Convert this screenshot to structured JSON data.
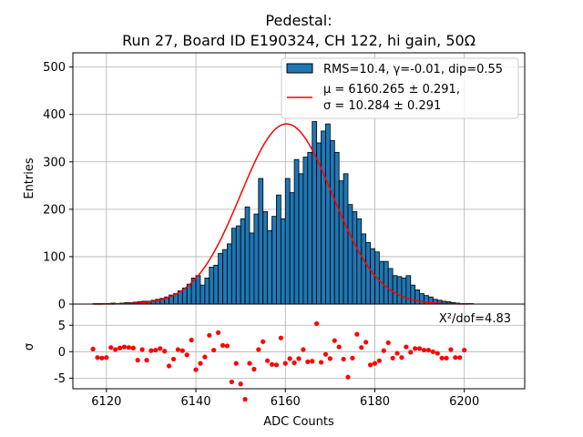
{
  "chart_data": [
    {
      "type": "bar",
      "panel": "main",
      "title": "Pedestal:",
      "subtitle": "Run 27, Board ID E190324, CH 122, hi gain, 50Ω",
      "ylabel": "Entries",
      "xlim": [
        6112.5,
        6213.5
      ],
      "ylim": [
        0,
        530
      ],
      "yticks": [
        0,
        100,
        200,
        300,
        400,
        500
      ],
      "grid": true,
      "legend": {
        "placement": "top-right",
        "hist_label": "RMS=10.4, γ=-0.01, dip=0.55",
        "fit_label_1": "μ = 6160.265 ± 0.291,",
        "fit_label_2": "σ = 10.284 ± 0.291"
      },
      "bins": {
        "start": 6117,
        "width": 1,
        "values": [
          1,
          1,
          1,
          1,
          2,
          1,
          2,
          3,
          3,
          4,
          5,
          6,
          6,
          8,
          10,
          12,
          15,
          19,
          22,
          28,
          34,
          42,
          55,
          60,
          40,
          55,
          78,
          82,
          107,
          115,
          127,
          160,
          165,
          180,
          205,
          150,
          190,
          265,
          195,
          155,
          185,
          230,
          180,
          265,
          235,
          305,
          275,
          310,
          320,
          385,
          340,
          365,
          380,
          345,
          320,
          260,
          275,
          210,
          195,
          180,
          148,
          130,
          117,
          110,
          90,
          90,
          75,
          60,
          58,
          55,
          60,
          40,
          30,
          22,
          18,
          15,
          10,
          8,
          6,
          5,
          3,
          2,
          1,
          1,
          1
        ]
      },
      "fit": {
        "type": "gaussian",
        "mu": 6160.265,
        "sigma": 10.284,
        "amplitude": 380,
        "x_range": [
          6117,
          6201
        ],
        "color": "#ff0000"
      },
      "colors": {
        "bar_fill": "#1f77b4",
        "bar_edge": "#000000",
        "grid": "#b0b0b0"
      }
    },
    {
      "type": "scatter",
      "panel": "residuals",
      "xlabel": "ADC Counts",
      "ylabel": "σ",
      "xlim": [
        6112.5,
        6213.5
      ],
      "ylim": [
        -7,
        9
      ],
      "yticks": [
        -5,
        0,
        5
      ],
      "xticks": [
        6120,
        6140,
        6160,
        6180,
        6200
      ],
      "grid": true,
      "annotation": "X²/dof=4.83",
      "point_color": "#ff0000",
      "x": [
        6117,
        6118,
        6119,
        6120,
        6121,
        6122,
        6123,
        6124,
        6125,
        6126,
        6127,
        6128,
        6129,
        6130,
        6131,
        6132,
        6133,
        6134,
        6135,
        6136,
        6137,
        6138,
        6139,
        6140,
        6141,
        6142,
        6143,
        6144,
        6145,
        6146,
        6147,
        6148,
        6149,
        6150,
        6151,
        6152,
        6153,
        6154,
        6155,
        6156,
        6157,
        6158,
        6159,
        6160,
        6161,
        6162,
        6163,
        6164,
        6165,
        6166,
        6167,
        6168,
        6169,
        6170,
        6171,
        6172,
        6173,
        6174,
        6175,
        6176,
        6177,
        6178,
        6179,
        6180,
        6181,
        6182,
        6183,
        6184,
        6185,
        6186,
        6187,
        6188,
        6189,
        6190,
        6191,
        6192,
        6193,
        6194,
        6195,
        6196,
        6197,
        6198,
        6199,
        6200
      ],
      "y": [
        0.5,
        -1.1,
        -1.2,
        -1.1,
        0.8,
        0.4,
        0.7,
        0.9,
        0.8,
        0.7,
        -1.6,
        0.4,
        -1.6,
        0.2,
        0.3,
        0.6,
        0.1,
        -2.7,
        -1.4,
        0.4,
        0.2,
        -0.6,
        2.2,
        -3.4,
        -2.2,
        -1.0,
        3.1,
        0.3,
        3.6,
        1.2,
        1.1,
        -5.7,
        -2.2,
        -6.1,
        -9.0,
        -2.2,
        -3.3,
        0.4,
        1.9,
        -1.7,
        -2.4,
        -2.5,
        2.6,
        -2.2,
        -1.3,
        -2.1,
        -1.3,
        0.4,
        -1.9,
        -1.8,
        5.3,
        -2.0,
        -0.5,
        -1.3,
        2.1,
        0.9,
        -1.4,
        -4.8,
        -1.2,
        3.3,
        0.8,
        1.8,
        -2.5,
        -2.2,
        -1.7,
        0.2,
        1.7,
        -1.2,
        -0.3,
        -1.1,
        0.9,
        -0.1,
        0.6,
        0.6,
        0.3,
        0.3,
        0.0,
        -0.3,
        -1.2,
        -1.2,
        0.4,
        -1.1,
        -1.1,
        0.3
      ]
    }
  ]
}
